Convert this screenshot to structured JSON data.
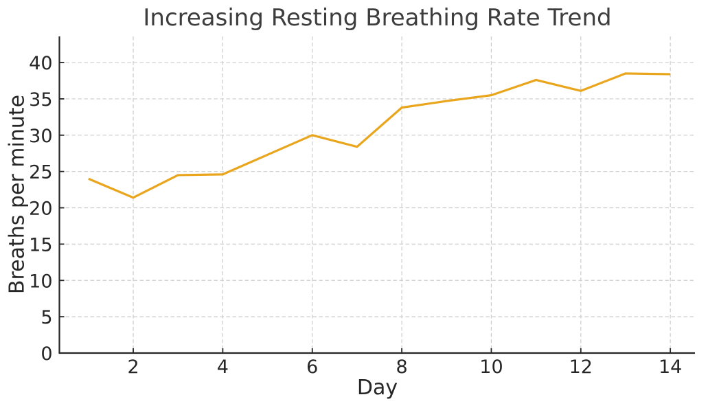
{
  "chart_data": {
    "type": "line",
    "title": "Increasing Resting Breathing Rate Trend",
    "xlabel": "Day",
    "ylabel": "Breaths per minute",
    "x": [
      1,
      2,
      3,
      4,
      5,
      6,
      7,
      8,
      9,
      10,
      11,
      12,
      13,
      14
    ],
    "values": [
      24.0,
      21.4,
      24.5,
      24.6,
      27.3,
      30.0,
      28.4,
      33.8,
      34.7,
      35.5,
      37.6,
      36.1,
      38.5,
      38.4
    ],
    "xticks": [
      2,
      4,
      6,
      8,
      10,
      12,
      14
    ],
    "yticks": [
      0,
      5,
      10,
      15,
      20,
      25,
      30,
      35,
      40
    ],
    "xlim": [
      0.35,
      14.55
    ],
    "ylim": [
      0,
      43.6
    ],
    "grid": true,
    "legend": "none",
    "colors": {
      "line": "#E9A51C",
      "grid": "#cccccc",
      "axis": "#262626",
      "tick_label": "#262626",
      "title": "#3d3d3d",
      "background": "#ffffff"
    }
  }
}
